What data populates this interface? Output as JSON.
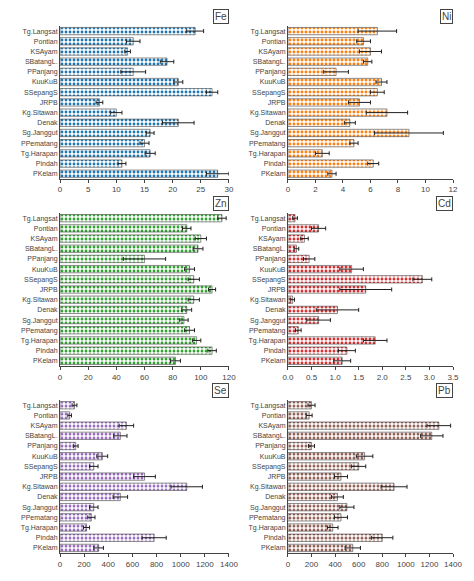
{
  "chart_data": [
    {
      "type": "bar",
      "orientation": "horizontal",
      "title": "Fe",
      "categories": [
        "Tg.Langsat",
        "Pontian",
        "KSAyam",
        "SBatangL.",
        "PPanjang",
        "KuuKuB",
        "SSepangS",
        "JRPB",
        "Kg.Sitawan",
        "Denak",
        "Sg.Janggut",
        "PPematang",
        "Tg.Harapan",
        "Pindah",
        "PKelam"
      ],
      "values": [
        24,
        13,
        12,
        19,
        13,
        21,
        27,
        7,
        10,
        21,
        16,
        15,
        16,
        11,
        28
      ],
      "errors": [
        1.5,
        1.2,
        0.5,
        1.2,
        2.2,
        0.8,
        1.0,
        0.6,
        1.0,
        2.8,
        0.7,
        0.8,
        0.9,
        0.7,
        2.0
      ],
      "xlim": [
        0,
        30
      ],
      "xticks": [
        0,
        5,
        10,
        15,
        20,
        25,
        30
      ],
      "grid": false
    },
    {
      "type": "bar",
      "orientation": "horizontal",
      "title": "Ni",
      "categories": [
        "Tg.Langsat",
        "Pontian",
        "KSAyam",
        "SBatangL.",
        "PPanjang",
        "KuuKuB",
        "SSepangS",
        "JRPB",
        "Kg.Sitawan",
        "Denak",
        "Sg.Janggut",
        "PPematang",
        "Tg.Harapan",
        "Pindah",
        "PKelam"
      ],
      "values": [
        6.5,
        5.5,
        6.0,
        5.8,
        3.5,
        6.8,
        6.5,
        5.2,
        7.2,
        4.5,
        8.8,
        4.8,
        2.5,
        6.2,
        3.2
      ],
      "errors": [
        1.4,
        0.5,
        0.8,
        0.3,
        0.9,
        0.4,
        0.5,
        0.8,
        1.5,
        0.4,
        2.5,
        0.3,
        0.5,
        0.4,
        0.3
      ],
      "xlim": [
        0,
        12
      ],
      "xticks": [
        0,
        2,
        4,
        6,
        8,
        10,
        12
      ],
      "grid": false
    },
    {
      "type": "bar",
      "orientation": "horizontal",
      "title": "Zn",
      "categories": [
        "Tg.Langsat",
        "Pontian",
        "KSAyam",
        "SBatangL.",
        "PPanjang",
        "KuuKuB",
        "SSepangS",
        "JRPB",
        "Kg.Sitawan",
        "Denak",
        "Sg.Janggut",
        "PPematang",
        "Tg.Harapan",
        "Pindah",
        "PKelam"
      ],
      "values": [
        115,
        90,
        100,
        98,
        60,
        92,
        95,
        108,
        95,
        90,
        88,
        92,
        97,
        108,
        82
      ],
      "errors": [
        3.0,
        3.0,
        4.0,
        3.5,
        15,
        3.5,
        4.0,
        2.5,
        4.0,
        3.5,
        3.0,
        3.5,
        3.0,
        3.0,
        3.5
      ],
      "xlim": [
        0,
        120
      ],
      "xticks": [
        0,
        20,
        40,
        60,
        80,
        100,
        120
      ],
      "grid": false
    },
    {
      "type": "bar",
      "orientation": "horizontal",
      "title": "Cd",
      "categories": [
        "Tg.Langsat",
        "Pontian",
        "KSAyam",
        "SBatangL.",
        "PPanjang",
        "KuuKuB",
        "SSepangS",
        "JRPB",
        "Kg.Sitawan",
        "Denak",
        "Sg.Janggut",
        "PPematang",
        "Tg.Harapan",
        "Pindah",
        "PKelam"
      ],
      "values": [
        0.15,
        0.65,
        0.35,
        0.18,
        0.45,
        1.35,
        2.85,
        1.65,
        0.1,
        1.05,
        0.65,
        0.22,
        1.85,
        1.25,
        1.15
      ],
      "errors": [
        0.05,
        0.15,
        0.08,
        0.05,
        0.12,
        0.25,
        0.2,
        0.55,
        0.04,
        0.45,
        0.25,
        0.06,
        0.25,
        0.18,
        0.18
      ],
      "xlim": [
        0,
        3.5
      ],
      "xticks": [
        {
          "value": 0,
          "label": "0.0"
        },
        0.5,
        {
          "value": 1,
          "label": "1.0"
        },
        1.5,
        {
          "value": 2,
          "label": "2.0"
        },
        2.5,
        {
          "value": 3,
          "label": "3.0"
        },
        3.5
      ],
      "grid": false
    },
    {
      "type": "bar",
      "orientation": "horizontal",
      "title": "Se",
      "categories": [
        "Tg.Langsat",
        "Pontian",
        "KSAyam",
        "SBatangL.",
        "PPanjang",
        "KuuKuB",
        "SSepangS",
        "JRPB",
        "Kg.Sitawan",
        "Denak",
        "Sg.Janggut",
        "PPematang",
        "Tg.Harapan",
        "Pindah",
        "PKelam"
      ],
      "values": [
        120,
        80,
        550,
        500,
        130,
        350,
        280,
        700,
        1050,
        500,
        280,
        260,
        220,
        780,
        320
      ],
      "errors": [
        20,
        15,
        60,
        55,
        20,
        45,
        35,
        90,
        130,
        60,
        35,
        30,
        25,
        100,
        40
      ],
      "xlim": [
        0,
        1400
      ],
      "xticks": [
        0,
        200,
        400,
        600,
        800,
        1000,
        1200,
        1400
      ],
      "grid": false
    },
    {
      "type": "bar",
      "orientation": "horizontal",
      "title": "Pb",
      "categories": [
        "Tg.Langsat",
        "Pontian",
        "KSAyam",
        "SBatangL.",
        "PPanjang",
        "KuuKuB",
        "SSepangS",
        "JRPB",
        "Kg.Sitawan",
        "Denak",
        "Sg.Janggut",
        "PPematang",
        "Tg.Harapan",
        "Pindah",
        "PKelam"
      ],
      "values": [
        200,
        180,
        1280,
        1220,
        200,
        650,
        600,
        450,
        900,
        420,
        500,
        450,
        380,
        800,
        550
      ],
      "errors": [
        30,
        25,
        100,
        95,
        25,
        70,
        60,
        55,
        110,
        50,
        60,
        55,
        45,
        90,
        65
      ],
      "xlim": [
        0,
        1400
      ],
      "xticks": [
        0,
        200,
        400,
        600,
        800,
        1000,
        1200,
        1400
      ],
      "grid": false
    }
  ]
}
